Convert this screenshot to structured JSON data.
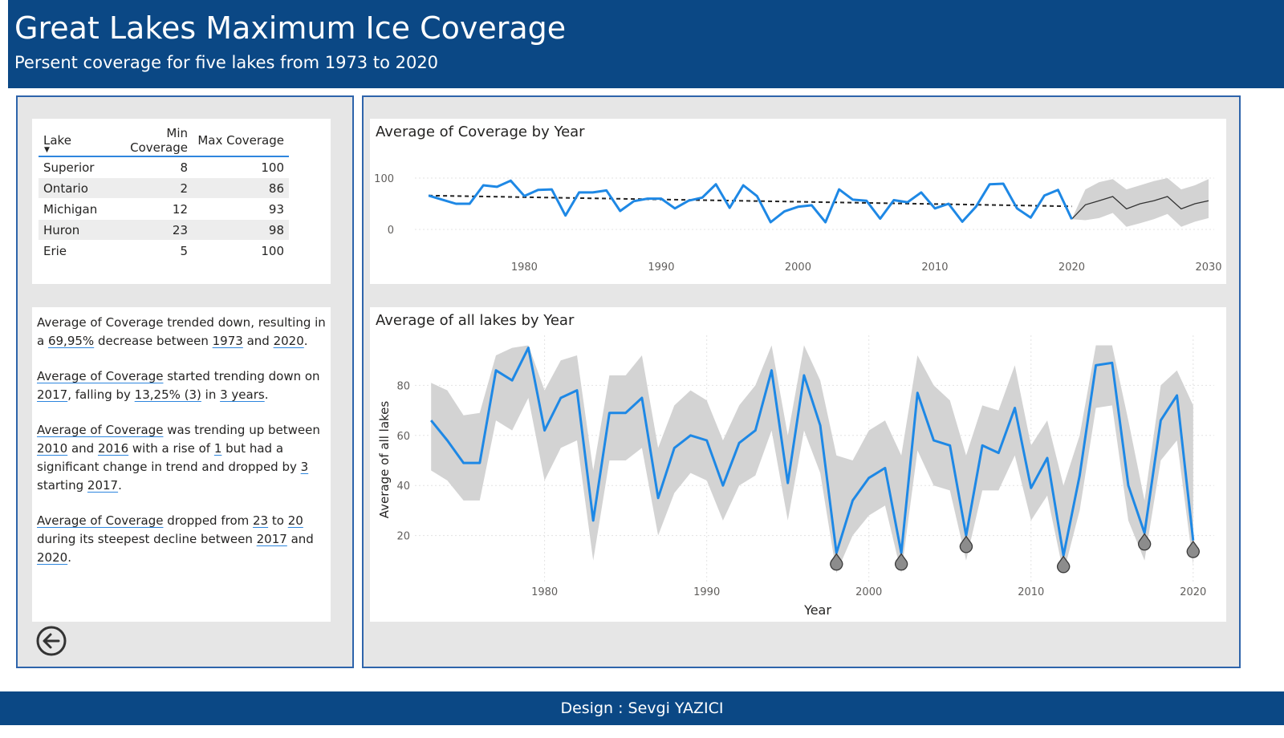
{
  "header": {
    "title": "Great Lakes Maximum Ice Coverage",
    "subtitle": "Persent coverage for five lakes from 1973 to 2020"
  },
  "table": {
    "columns": [
      "Lake",
      "Min Coverage",
      "Max Coverage"
    ],
    "rows": [
      {
        "lake": "Superior",
        "min": "8",
        "max": "100"
      },
      {
        "lake": "Ontario",
        "min": "2",
        "max": "86"
      },
      {
        "lake": "Michigan",
        "min": "12",
        "max": "93"
      },
      {
        "lake": "Huron",
        "min": "23",
        "max": "98"
      },
      {
        "lake": "Erie",
        "min": "5",
        "max": "100"
      }
    ]
  },
  "narrative": {
    "p1": {
      "a": "Average of Coverage trended down, resulting in a ",
      "b": "69,95%",
      "c": " decrease between ",
      "d": "1973",
      "e": " and ",
      "f": "2020",
      "g": "."
    },
    "p2": {
      "a": "Average of Coverage",
      "b": " started trending down on ",
      "c": "2017",
      "d": ", falling by ",
      "e": "13,25% (3)",
      "f": " in ",
      "g": "3 years",
      "h": "."
    },
    "p3": {
      "a": "Average of Coverage",
      "b": " was trending up between ",
      "c": "2010",
      "d": " and ",
      "e": "2016",
      "f": " with a rise of ",
      "g": "1",
      "h": " but had a significant change in trend and dropped by ",
      "i": "3",
      "j": " starting ",
      "k": "2017",
      "l": "."
    },
    "p4": {
      "a": "Average of Coverage",
      "b": " dropped from ",
      "c": "23",
      "d": " to ",
      "e": "20",
      "f": " during its steepest decline between ",
      "g": "2017",
      "h": " and ",
      "i": "2020",
      "j": "."
    }
  },
  "footer": {
    "text": "Design : Sevgi YAZICI"
  },
  "icons": {
    "back": "back-arrow-circle-icon"
  },
  "colors": {
    "brand": "#0b4885",
    "line": "#1e88e5",
    "band": "#d3d3d3",
    "anomaly": "#8c8c8c"
  },
  "chart_data": [
    {
      "type": "line",
      "title": "Average of Coverage by Year",
      "xlabel": "",
      "ylabel": "",
      "xlim": [
        1972,
        2030
      ],
      "ylim": [
        0,
        100
      ],
      "xticks": [
        1980,
        1990,
        2000,
        2010,
        2020,
        2030
      ],
      "yticks": [
        0,
        100
      ],
      "grid": true,
      "legend": "none",
      "series": [
        {
          "x": [
            1973,
            1974,
            1975,
            1976,
            1977,
            1978,
            1979,
            1980,
            1981,
            1982,
            1983,
            1984,
            1985,
            1986,
            1987,
            1988,
            1989,
            1990,
            1991,
            1992,
            1993,
            1994,
            1995,
            1996,
            1997,
            1998,
            1999,
            2000,
            2001,
            2002,
            2003,
            2004,
            2005,
            2006,
            2007,
            2008,
            2009,
            2010,
            2011,
            2012,
            2013,
            2014,
            2015,
            2016,
            2017,
            2018,
            2019,
            2020
          ],
          "values": [
            66,
            58,
            50,
            50,
            86,
            83,
            95,
            65,
            77,
            78,
            27,
            72,
            72,
            76,
            36,
            55,
            60,
            60,
            41,
            56,
            62,
            88,
            42,
            86,
            65,
            14,
            35,
            44,
            47,
            14,
            78,
            58,
            56,
            21,
            57,
            53,
            72,
            41,
            50,
            15,
            44,
            88,
            89,
            41,
            23,
            66,
            77,
            20
          ]
        }
      ],
      "trend": {
        "x": [
          1973,
          2020
        ],
        "values": [
          66,
          45
        ]
      },
      "forecast": {
        "x": [
          2020,
          2021,
          2022,
          2023,
          2024,
          2025,
          2026,
          2027,
          2028,
          2029,
          2030
        ],
        "values": [
          20,
          48,
          56,
          64,
          40,
          50,
          56,
          64,
          40,
          50,
          56
        ],
        "lower": [
          20,
          18,
          22,
          32,
          5,
          12,
          20,
          30,
          5,
          15,
          22
        ],
        "upper": [
          20,
          78,
          92,
          98,
          78,
          86,
          94,
          100,
          78,
          86,
          98
        ]
      }
    },
    {
      "type": "line",
      "title": "Average of all lakes by Year",
      "xlabel": "Year",
      "ylabel": "Average of all lakes",
      "xlim": [
        1972,
        2021
      ],
      "ylim": [
        0,
        100
      ],
      "xticks": [
        1980,
        1990,
        2000,
        2010,
        2020
      ],
      "yticks": [
        20,
        40,
        60,
        80
      ],
      "grid": true,
      "legend": "none",
      "series": [
        {
          "x": [
            1973,
            1974,
            1975,
            1976,
            1977,
            1978,
            1979,
            1980,
            1981,
            1982,
            1983,
            1984,
            1985,
            1986,
            1987,
            1988,
            1989,
            1990,
            1991,
            1992,
            1993,
            1994,
            1995,
            1996,
            1997,
            1998,
            1999,
            2000,
            2001,
            2002,
            2003,
            2004,
            2005,
            2006,
            2007,
            2008,
            2009,
            2010,
            2011,
            2012,
            2013,
            2014,
            2015,
            2016,
            2017,
            2018,
            2019,
            2020
          ],
          "values": [
            66,
            58,
            49,
            49,
            86,
            82,
            95,
            62,
            75,
            78,
            26,
            69,
            69,
            75,
            35,
            55,
            60,
            58,
            40,
            57,
            62,
            86,
            41,
            84,
            64,
            13,
            34,
            43,
            47,
            13,
            77,
            58,
            56,
            20,
            56,
            53,
            71,
            39,
            51,
            12,
            44,
            88,
            89,
            40,
            21,
            66,
            76,
            18
          ],
          "lower": [
            46,
            42,
            34,
            34,
            66,
            62,
            75,
            42,
            55,
            58,
            10,
            50,
            50,
            55,
            20,
            37,
            45,
            42,
            26,
            40,
            44,
            62,
            26,
            62,
            45,
            5,
            20,
            28,
            32,
            5,
            54,
            40,
            38,
            10,
            38,
            38,
            52,
            26,
            36,
            5,
            30,
            71,
            72,
            26,
            10,
            50,
            58,
            8
          ],
          "upper": [
            81,
            78,
            68,
            69,
            92,
            95,
            96,
            78,
            90,
            92,
            46,
            84,
            84,
            92,
            55,
            72,
            78,
            74,
            58,
            72,
            80,
            96,
            60,
            96,
            82,
            52,
            50,
            62,
            66,
            52,
            92,
            80,
            74,
            52,
            72,
            70,
            88,
            56,
            66,
            40,
            60,
            96,
            96,
            66,
            34,
            80,
            86,
            72
          ]
        }
      ],
      "anomalies": {
        "x": [
          1998,
          2002,
          2006,
          2012,
          2017,
          2020
        ],
        "values": [
          13,
          13,
          20,
          12,
          21,
          18
        ]
      }
    }
  ]
}
